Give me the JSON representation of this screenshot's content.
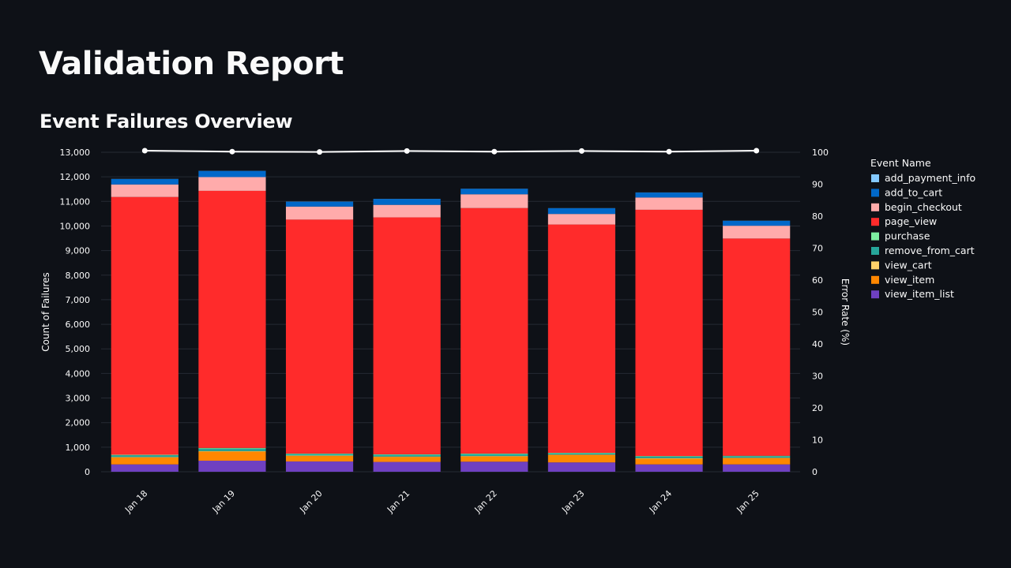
{
  "page": {
    "title": "Validation Report",
    "section_title": "Event Failures Overview"
  },
  "chart_data": {
    "type": "bar",
    "stacked": true,
    "title": "Event Failures Overview",
    "xlabel": "",
    "ylabel": "Count of Failures",
    "y2label": "Error Rate (%)",
    "ylim": [
      0,
      13000
    ],
    "y2lim": [
      0,
      100
    ],
    "yticks": [
      "0",
      "1,000",
      "2,000",
      "3,000",
      "4,000",
      "5,000",
      "6,000",
      "7,000",
      "8,000",
      "9,000",
      "10,000",
      "11,000",
      "12,000",
      "13,000"
    ],
    "y2ticks": [
      "0",
      "10",
      "20",
      "30",
      "40",
      "50",
      "60",
      "70",
      "80",
      "90",
      "100"
    ],
    "categories": [
      "Jan 18",
      "Jan 19",
      "Jan 20",
      "Jan 21",
      "Jan 22",
      "Jan 23",
      "Jan 24",
      "Jan 25"
    ],
    "legend_title": "Event Name",
    "legend_position": "right",
    "series": [
      {
        "name": "view_item_list",
        "color": "#6f40c1",
        "values": [
          300,
          450,
          420,
          400,
          410,
          380,
          300,
          300
        ]
      },
      {
        "name": "view_item",
        "color": "#ff8700",
        "values": [
          280,
          370,
          220,
          200,
          210,
          300,
          230,
          250
        ]
      },
      {
        "name": "view_cart",
        "color": "#ffd16a",
        "values": [
          20,
          20,
          20,
          20,
          20,
          20,
          20,
          20
        ]
      },
      {
        "name": "remove_from_cart",
        "color": "#26a69a",
        "values": [
          70,
          100,
          60,
          70,
          80,
          50,
          70,
          60
        ]
      },
      {
        "name": "purchase",
        "color": "#7defa1",
        "values": [
          20,
          30,
          20,
          20,
          20,
          20,
          20,
          20
        ]
      },
      {
        "name": "page_view",
        "color": "#ff2b2b",
        "values": [
          10490,
          10460,
          9520,
          9640,
          9990,
          9290,
          10020,
          8840
        ]
      },
      {
        "name": "begin_checkout",
        "color": "#ffabab",
        "values": [
          510,
          560,
          530,
          510,
          560,
          430,
          500,
          520
        ]
      },
      {
        "name": "add_to_cart",
        "color": "#0068c9",
        "values": [
          220,
          250,
          200,
          240,
          220,
          230,
          200,
          200
        ]
      },
      {
        "name": "add_payment_info",
        "color": "#83c9ff",
        "values": [
          5,
          5,
          5,
          5,
          5,
          5,
          5,
          5
        ]
      }
    ],
    "line": {
      "name": "Error Rate (%)",
      "color": "#ffffff",
      "axis": "y2",
      "values": [
        100.5,
        100.2,
        100.1,
        100.4,
        100.2,
        100.4,
        100.2,
        100.5
      ]
    }
  }
}
